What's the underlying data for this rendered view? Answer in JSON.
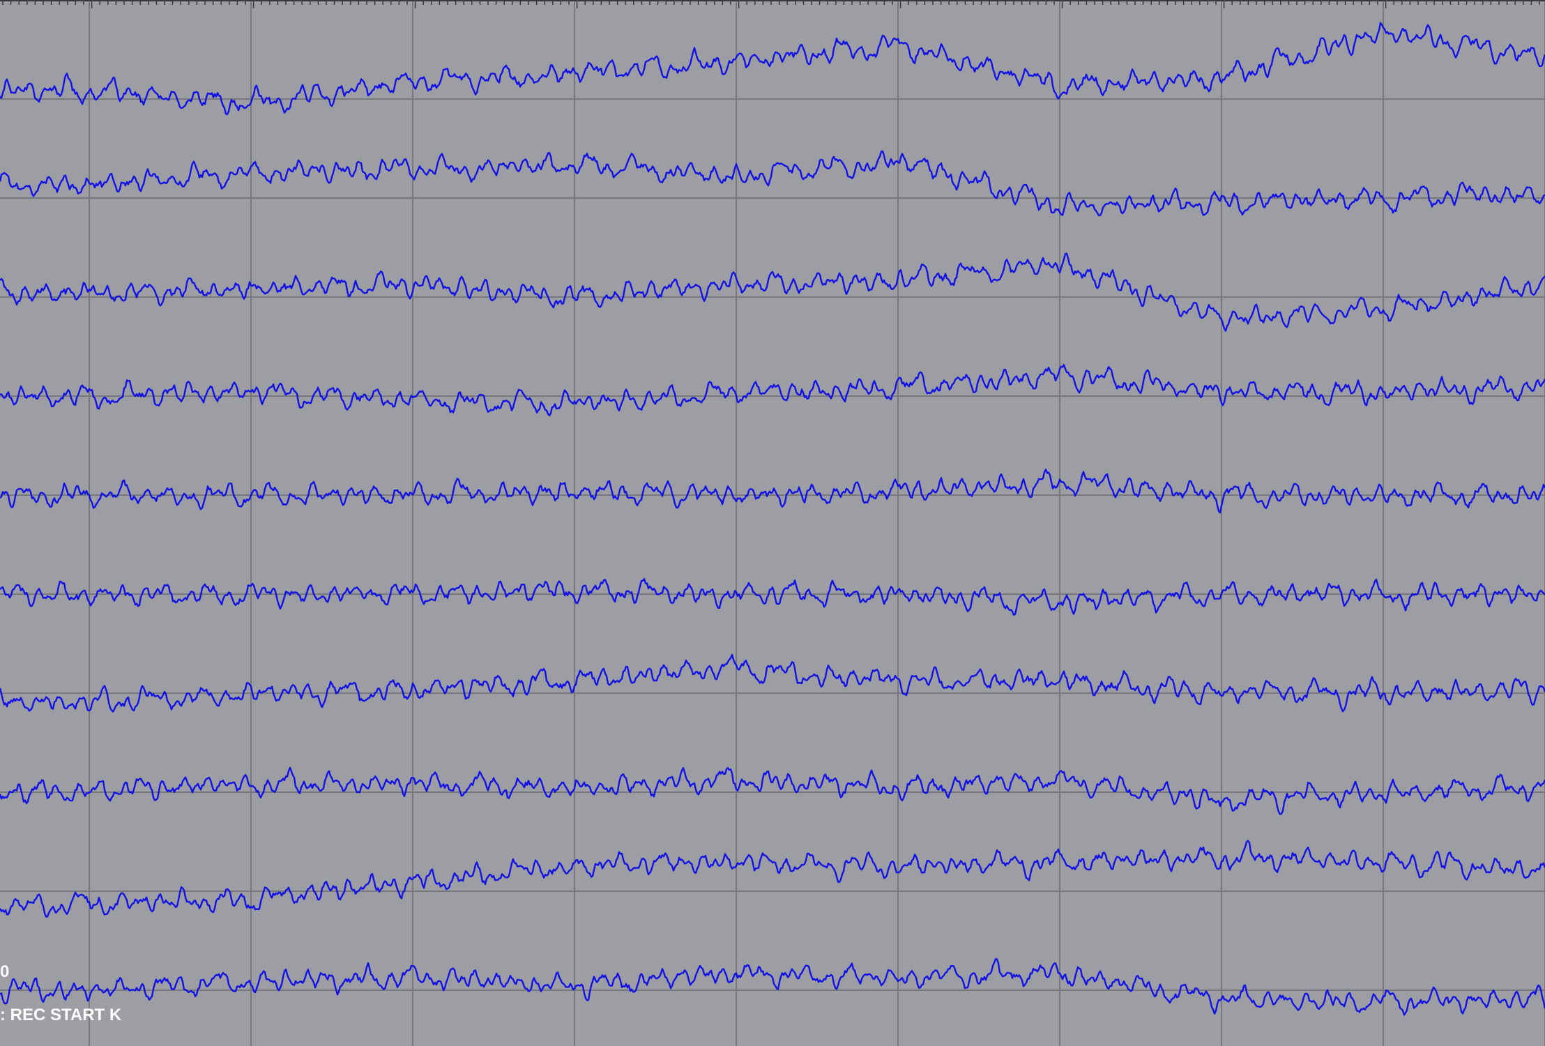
{
  "colors": {
    "background": "#9d9ea3",
    "trace": "#1212e6",
    "grid": "#77787d",
    "ruler": "#3a3a3a",
    "text": "#ffffff"
  },
  "overlay": {
    "marker_value": "0",
    "annotation": ": REC START K"
  },
  "chart_data": {
    "type": "line",
    "title": "",
    "xlabel": "",
    "ylabel": "",
    "grid": true,
    "x": [
      0,
      1,
      2,
      3,
      4,
      5,
      6,
      7,
      8,
      9
    ],
    "xlim": [
      0,
      9.57
    ],
    "channel_count": 10,
    "series": [
      {
        "values": [
          0.2,
          -0.1,
          0.4,
          0.6,
          0.9,
          1.3,
          0.3,
          0.5,
          1.6,
          1.0
        ]
      },
      {
        "values": [
          0.3,
          0.6,
          0.7,
          0.8,
          0.5,
          0.9,
          -0.2,
          -0.1,
          0.0,
          0.1
        ]
      },
      {
        "values": [
          0.1,
          0.2,
          0.3,
          0.0,
          0.3,
          0.4,
          0.8,
          -0.5,
          -0.3,
          0.3
        ]
      },
      {
        "values": [
          0.0,
          0.1,
          -0.1,
          -0.2,
          0.1,
          0.2,
          0.5,
          0.1,
          0.1,
          0.2
        ]
      },
      {
        "values": [
          0.0,
          0.0,
          0.0,
          0.1,
          0.0,
          0.1,
          0.3,
          0.0,
          0.0,
          0.0
        ]
      },
      {
        "values": [
          0.0,
          0.0,
          0.0,
          0.1,
          0.0,
          0.0,
          -0.2,
          0.0,
          0.0,
          0.0
        ]
      },
      {
        "values": [
          -0.2,
          0.0,
          0.1,
          0.3,
          0.6,
          0.3,
          0.3,
          0.0,
          0.0,
          0.1
        ]
      },
      {
        "values": [
          0.0,
          0.2,
          0.2,
          0.1,
          0.3,
          0.1,
          0.3,
          -0.2,
          0.0,
          0.1
        ]
      },
      {
        "values": [
          -0.3,
          -0.2,
          0.2,
          0.6,
          0.7,
          0.6,
          0.7,
          0.8,
          0.7,
          0.5
        ]
      },
      {
        "values": [
          0.0,
          0.2,
          0.3,
          0.1,
          0.4,
          0.3,
          0.4,
          -0.2,
          -0.3,
          -0.2
        ]
      }
    ]
  }
}
